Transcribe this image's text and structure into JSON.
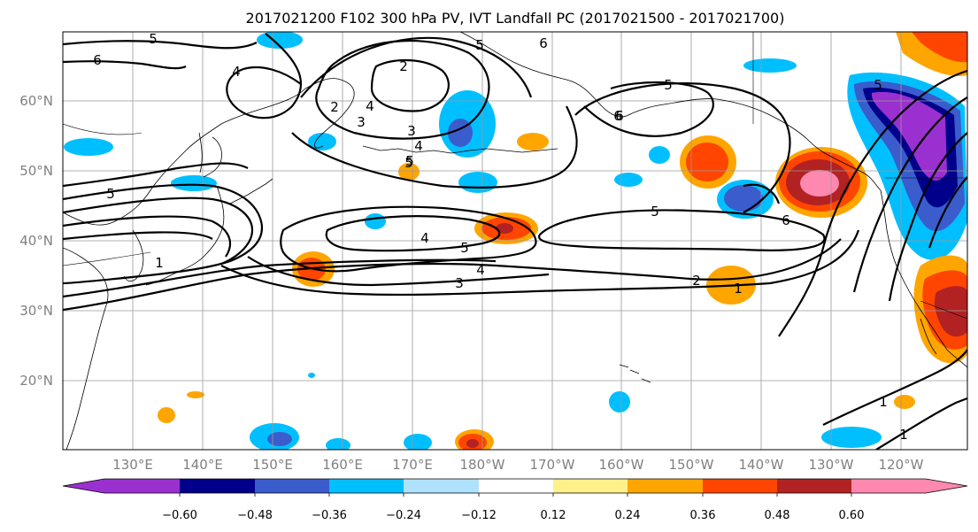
{
  "title": "2017021200 F102 300 hPa PV, IVT Landfall PC (2017021500 - 2017021700)",
  "lat_labels": [
    "60°N",
    "50°N",
    "40°N",
    "30°N",
    "20°N"
  ],
  "lon_labels": [
    "130°E",
    "140°E",
    "150°E",
    "160°E",
    "170°E",
    "180°W",
    "170°W",
    "160°W",
    "150°W",
    "140°W",
    "130°W",
    "120°W"
  ],
  "colorbar": {
    "colors": [
      "#9b30d0",
      "#00008b",
      "#3a5ccc",
      "#00bfff",
      "#b0e2ff",
      "#ffffff",
      "#fff08a",
      "#ffa500",
      "#ff4500",
      "#b22222",
      "#ff88b0"
    ],
    "tick_labels": [
      "−0.60",
      "−0.48",
      "−0.36",
      "−0.24",
      "−0.12",
      "0.12",
      "0.24",
      "0.36",
      "0.48",
      "0.60"
    ]
  },
  "contour_labels": [
    "5",
    "6",
    "4",
    "2",
    "5",
    "6",
    "3",
    "4",
    "5",
    "3",
    "2",
    "5",
    "5",
    "6",
    "4",
    "6",
    "5",
    "4",
    "5",
    "4",
    "3",
    "1",
    "2",
    "1",
    "5",
    "1",
    "1",
    "6",
    "5"
  ]
}
